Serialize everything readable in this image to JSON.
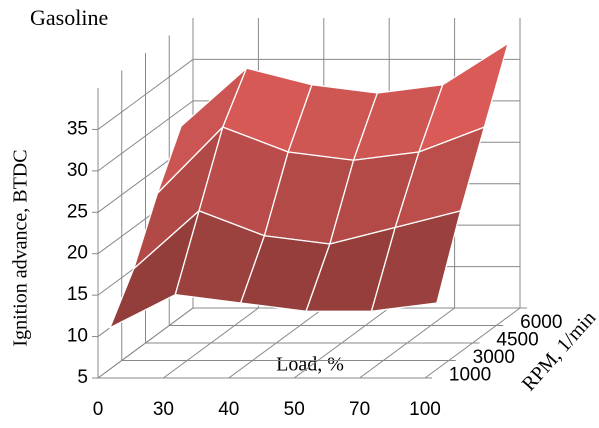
{
  "chart_data": {
    "type": "surface",
    "title": "Gasoline",
    "x_label": "Load, %",
    "depth_label": "RPM, 1/min",
    "z_label": "Ignition advance, BTDC",
    "categories": [
      "0",
      "30",
      "40",
      "50",
      "70",
      "100"
    ],
    "depth_categories": [
      "1000",
      "3000",
      "4500",
      "6000"
    ],
    "rows": [
      {
        "name": "1000",
        "values": [
          10,
          14,
          13,
          12,
          12,
          13
        ]
      },
      {
        "name": "3000",
        "values": [
          15,
          22,
          19,
          18,
          20,
          22
        ]
      },
      {
        "name": "4500",
        "values": [
          22,
          30,
          27,
          26,
          27,
          30
        ]
      },
      {
        "name": "6000",
        "values": [
          28,
          35,
          33,
          32,
          33,
          38
        ]
      }
    ],
    "color": "#c0504d",
    "zlim": [
      5,
      40
    ],
    "zticks": [
      5,
      10,
      15,
      20,
      25,
      30,
      35
    ],
    "grid": true
  }
}
